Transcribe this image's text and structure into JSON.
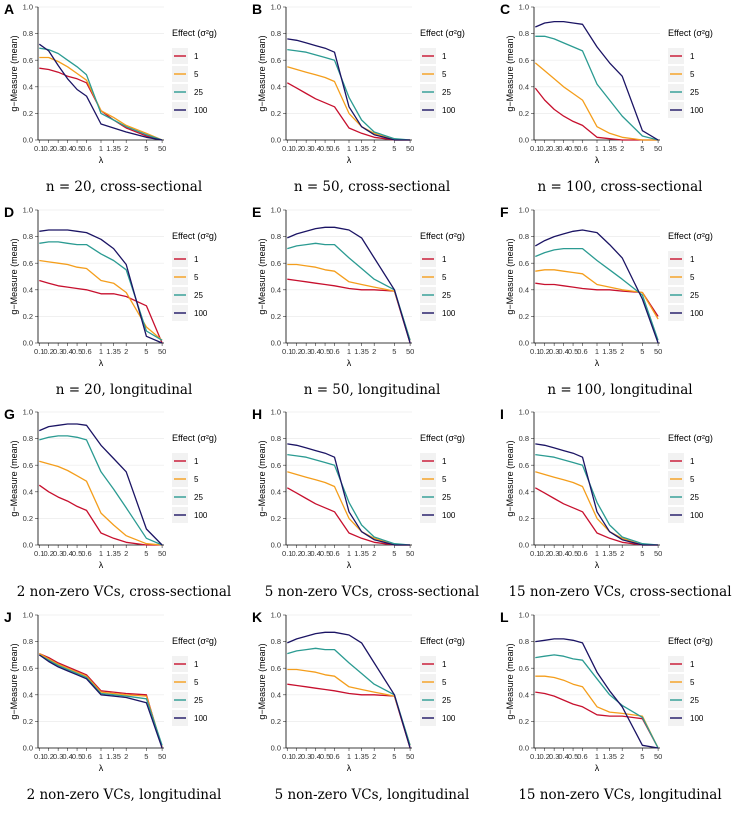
{
  "figure": {
    "legend_title": "Effect (σ²g)",
    "x_label": "λ",
    "y_label": "g−Measure (mean)",
    "x_ticks": [
      "0.1",
      "0.2",
      "0.3",
      "0.4",
      "0.5",
      "0.6",
      "1",
      "1.35",
      "2",
      "5",
      "50"
    ],
    "y_ticks": [
      "0.0",
      "0.2",
      "0.4",
      "0.6",
      "0.8",
      "1.0"
    ],
    "colors": {
      "1": "#c7102e",
      "5": "#f49e1c",
      "25": "#2b9b92",
      "100": "#1b1464"
    }
  },
  "chart_data": [
    {
      "type": "line",
      "panel": "A",
      "caption": "n = 20, cross-sectional",
      "ylim": [
        0,
        1
      ],
      "x": [
        "0.1",
        "0.2",
        "0.3",
        "0.4",
        "0.5",
        "0.6",
        "1",
        "1.35",
        "2",
        "5",
        "50"
      ],
      "series": [
        {
          "name": "1",
          "values": [
            0.54,
            0.53,
            0.51,
            0.48,
            0.46,
            0.43,
            0.22,
            0.15,
            0.09,
            0.03,
            0.0
          ]
        },
        {
          "name": "5",
          "values": [
            0.62,
            0.62,
            0.59,
            0.55,
            0.5,
            0.45,
            0.22,
            0.17,
            0.11,
            0.05,
            0.0
          ]
        },
        {
          "name": "25",
          "values": [
            0.69,
            0.68,
            0.65,
            0.6,
            0.55,
            0.49,
            0.2,
            0.15,
            0.1,
            0.04,
            0.0
          ]
        },
        {
          "name": "100",
          "values": [
            0.72,
            0.67,
            0.56,
            0.46,
            0.38,
            0.33,
            0.12,
            0.09,
            0.06,
            0.02,
            0.0
          ]
        }
      ]
    },
    {
      "type": "line",
      "panel": "B",
      "caption": "n = 50, cross-sectional",
      "ylim": [
        0,
        1
      ],
      "x": [
        "0.1",
        "0.2",
        "0.3",
        "0.4",
        "0.5",
        "0.6",
        "1",
        "1.35",
        "2",
        "5",
        "50"
      ],
      "series": [
        {
          "name": "1",
          "values": [
            0.43,
            0.39,
            0.35,
            0.31,
            0.28,
            0.25,
            0.09,
            0.05,
            0.02,
            0.0,
            0.0
          ]
        },
        {
          "name": "5",
          "values": [
            0.55,
            0.53,
            0.51,
            0.49,
            0.47,
            0.44,
            0.2,
            0.1,
            0.05,
            0.0,
            0.0
          ]
        },
        {
          "name": "25",
          "values": [
            0.68,
            0.67,
            0.66,
            0.64,
            0.62,
            0.6,
            0.32,
            0.15,
            0.06,
            0.01,
            0.0
          ]
        },
        {
          "name": "100",
          "values": [
            0.76,
            0.75,
            0.73,
            0.71,
            0.69,
            0.66,
            0.25,
            0.1,
            0.04,
            0.0,
            0.0
          ]
        }
      ]
    },
    {
      "type": "line",
      "panel": "C",
      "caption": "n = 100, cross-sectional",
      "ylim": [
        0,
        1
      ],
      "x": [
        "0.1",
        "0.2",
        "0.3",
        "0.4",
        "0.5",
        "0.6",
        "1",
        "1.35",
        "2",
        "5",
        "50"
      ],
      "series": [
        {
          "name": "1",
          "values": [
            0.39,
            0.3,
            0.23,
            0.18,
            0.14,
            0.11,
            0.02,
            0.01,
            0.0,
            0.0,
            0.0
          ]
        },
        {
          "name": "5",
          "values": [
            0.58,
            0.52,
            0.46,
            0.4,
            0.35,
            0.3,
            0.1,
            0.05,
            0.02,
            0.0,
            0.0
          ]
        },
        {
          "name": "25",
          "values": [
            0.78,
            0.78,
            0.76,
            0.73,
            0.7,
            0.67,
            0.42,
            0.3,
            0.18,
            0.03,
            0.0
          ]
        },
        {
          "name": "100",
          "values": [
            0.85,
            0.88,
            0.89,
            0.89,
            0.88,
            0.87,
            0.7,
            0.58,
            0.48,
            0.07,
            0.0
          ]
        }
      ]
    },
    {
      "type": "line",
      "panel": "D",
      "caption": "n = 20, longitudinal",
      "ylim": [
        0,
        1
      ],
      "x": [
        "0.1",
        "0.2",
        "0.3",
        "0.4",
        "0.5",
        "0.6",
        "1",
        "1.35",
        "2",
        "5",
        "50"
      ],
      "series": [
        {
          "name": "1",
          "values": [
            0.47,
            0.45,
            0.43,
            0.42,
            0.41,
            0.4,
            0.37,
            0.37,
            0.35,
            0.28,
            0.0
          ]
        },
        {
          "name": "5",
          "values": [
            0.62,
            0.61,
            0.6,
            0.59,
            0.57,
            0.56,
            0.47,
            0.45,
            0.38,
            0.12,
            0.02
          ]
        },
        {
          "name": "25",
          "values": [
            0.75,
            0.76,
            0.76,
            0.75,
            0.74,
            0.74,
            0.67,
            0.62,
            0.55,
            0.09,
            0.02
          ]
        },
        {
          "name": "100",
          "values": [
            0.84,
            0.85,
            0.85,
            0.85,
            0.84,
            0.83,
            0.78,
            0.71,
            0.59,
            0.05,
            0.0
          ]
        }
      ]
    },
    {
      "type": "line",
      "panel": "E",
      "caption": "n = 50, longitudinal",
      "ylim": [
        0,
        1
      ],
      "x": [
        "0.1",
        "0.2",
        "0.3",
        "0.4",
        "0.5",
        "0.6",
        "1",
        "1.35",
        "2",
        "5",
        "50"
      ],
      "series": [
        {
          "name": "1",
          "values": [
            0.48,
            0.47,
            0.46,
            0.45,
            0.44,
            0.43,
            0.41,
            0.4,
            0.4,
            0.39,
            0.0
          ]
        },
        {
          "name": "5",
          "values": [
            0.59,
            0.59,
            0.58,
            0.57,
            0.55,
            0.54,
            0.46,
            0.44,
            0.42,
            0.39,
            0.02
          ]
        },
        {
          "name": "25",
          "values": [
            0.71,
            0.73,
            0.74,
            0.75,
            0.74,
            0.74,
            0.64,
            0.56,
            0.48,
            0.4,
            0.02
          ]
        },
        {
          "name": "100",
          "values": [
            0.79,
            0.82,
            0.84,
            0.86,
            0.87,
            0.87,
            0.85,
            0.79,
            0.64,
            0.4,
            0.0
          ]
        }
      ]
    },
    {
      "type": "line",
      "panel": "F",
      "caption": "n = 100, longitudinal",
      "ylim": [
        0,
        1
      ],
      "x": [
        "0.1",
        "0.2",
        "0.3",
        "0.4",
        "0.5",
        "0.6",
        "1",
        "1.35",
        "2",
        "5",
        "50"
      ],
      "series": [
        {
          "name": "1",
          "values": [
            0.45,
            0.44,
            0.44,
            0.43,
            0.42,
            0.41,
            0.4,
            0.4,
            0.39,
            0.38,
            0.2
          ]
        },
        {
          "name": "5",
          "values": [
            0.54,
            0.55,
            0.55,
            0.54,
            0.53,
            0.52,
            0.44,
            0.42,
            0.4,
            0.38,
            0.18
          ]
        },
        {
          "name": "25",
          "values": [
            0.65,
            0.68,
            0.7,
            0.71,
            0.71,
            0.71,
            0.62,
            0.55,
            0.48,
            0.36,
            0.02
          ]
        },
        {
          "name": "100",
          "values": [
            0.73,
            0.77,
            0.8,
            0.82,
            0.84,
            0.85,
            0.83,
            0.74,
            0.64,
            0.33,
            0.0
          ]
        }
      ]
    },
    {
      "type": "line",
      "panel": "G",
      "caption": "2 non-zero VCs, cross-sectional",
      "ylim": [
        0,
        1
      ],
      "x": [
        "0.1",
        "0.2",
        "0.3",
        "0.4",
        "0.5",
        "0.6",
        "1",
        "1.35",
        "2",
        "5",
        "50"
      ],
      "series": [
        {
          "name": "1",
          "values": [
            0.45,
            0.4,
            0.36,
            0.33,
            0.29,
            0.26,
            0.09,
            0.05,
            0.02,
            0.0,
            0.0
          ]
        },
        {
          "name": "5",
          "values": [
            0.63,
            0.61,
            0.59,
            0.56,
            0.52,
            0.48,
            0.24,
            0.15,
            0.07,
            0.01,
            0.0
          ]
        },
        {
          "name": "25",
          "values": [
            0.79,
            0.81,
            0.82,
            0.82,
            0.81,
            0.79,
            0.55,
            0.42,
            0.28,
            0.05,
            0.0
          ]
        },
        {
          "name": "100",
          "values": [
            0.86,
            0.89,
            0.9,
            0.91,
            0.91,
            0.9,
            0.75,
            0.65,
            0.55,
            0.12,
            0.0
          ]
        }
      ]
    },
    {
      "type": "line",
      "panel": "H",
      "caption": "5 non-zero VCs, cross-sectional",
      "ylim": [
        0,
        1
      ],
      "x": [
        "0.1",
        "0.2",
        "0.3",
        "0.4",
        "0.5",
        "0.6",
        "1",
        "1.35",
        "2",
        "5",
        "50"
      ],
      "series": [
        {
          "name": "1",
          "values": [
            0.43,
            0.39,
            0.35,
            0.31,
            0.28,
            0.25,
            0.09,
            0.05,
            0.02,
            0.0,
            0.0
          ]
        },
        {
          "name": "5",
          "values": [
            0.55,
            0.53,
            0.51,
            0.49,
            0.47,
            0.44,
            0.2,
            0.1,
            0.05,
            0.0,
            0.0
          ]
        },
        {
          "name": "25",
          "values": [
            0.68,
            0.67,
            0.66,
            0.64,
            0.62,
            0.6,
            0.32,
            0.15,
            0.06,
            0.01,
            0.0
          ]
        },
        {
          "name": "100",
          "values": [
            0.76,
            0.75,
            0.73,
            0.71,
            0.69,
            0.66,
            0.25,
            0.1,
            0.04,
            0.0,
            0.0
          ]
        }
      ]
    },
    {
      "type": "line",
      "panel": "I",
      "caption": "15 non-zero VCs, cross-sectional",
      "ylim": [
        0,
        1
      ],
      "x": [
        "0.1",
        "0.2",
        "0.3",
        "0.4",
        "0.5",
        "0.6",
        "1",
        "1.35",
        "2",
        "5",
        "50"
      ],
      "series": [
        {
          "name": "1",
          "values": [
            0.43,
            0.39,
            0.35,
            0.31,
            0.28,
            0.25,
            0.09,
            0.05,
            0.02,
            0.0,
            0.0
          ]
        },
        {
          "name": "5",
          "values": [
            0.55,
            0.53,
            0.51,
            0.49,
            0.47,
            0.44,
            0.2,
            0.1,
            0.05,
            0.0,
            0.0
          ]
        },
        {
          "name": "25",
          "values": [
            0.68,
            0.67,
            0.66,
            0.64,
            0.62,
            0.6,
            0.32,
            0.15,
            0.06,
            0.01,
            0.0
          ]
        },
        {
          "name": "100",
          "values": [
            0.76,
            0.75,
            0.73,
            0.71,
            0.69,
            0.66,
            0.25,
            0.1,
            0.04,
            0.0,
            0.0
          ]
        }
      ]
    },
    {
      "type": "line",
      "panel": "J",
      "caption": "2 non-zero VCs, longitudinal",
      "ylim": [
        0,
        1
      ],
      "x": [
        "0.1",
        "0.2",
        "0.3",
        "0.4",
        "0.5",
        "0.6",
        "1",
        "1.35",
        "2",
        "5",
        "50"
      ],
      "series": [
        {
          "name": "1",
          "values": [
            0.71,
            0.68,
            0.64,
            0.61,
            0.58,
            0.55,
            0.43,
            0.42,
            0.41,
            0.4,
            0.0
          ]
        },
        {
          "name": "5",
          "values": [
            0.71,
            0.67,
            0.63,
            0.6,
            0.57,
            0.54,
            0.42,
            0.41,
            0.4,
            0.39,
            0.01
          ]
        },
        {
          "name": "25",
          "values": [
            0.7,
            0.66,
            0.62,
            0.59,
            0.56,
            0.53,
            0.41,
            0.4,
            0.39,
            0.37,
            0.02
          ]
        },
        {
          "name": "100",
          "values": [
            0.7,
            0.65,
            0.61,
            0.58,
            0.55,
            0.52,
            0.4,
            0.39,
            0.38,
            0.34,
            0.0
          ]
        }
      ]
    },
    {
      "type": "line",
      "panel": "K",
      "caption": "5 non-zero VCs, longitudinal",
      "ylim": [
        0,
        1
      ],
      "x": [
        "0.1",
        "0.2",
        "0.3",
        "0.4",
        "0.5",
        "0.6",
        "1",
        "1.35",
        "2",
        "5",
        "50"
      ],
      "series": [
        {
          "name": "1",
          "values": [
            0.48,
            0.47,
            0.46,
            0.45,
            0.44,
            0.43,
            0.41,
            0.4,
            0.4,
            0.39,
            0.0
          ]
        },
        {
          "name": "5",
          "values": [
            0.59,
            0.59,
            0.58,
            0.57,
            0.55,
            0.54,
            0.46,
            0.44,
            0.42,
            0.39,
            0.02
          ]
        },
        {
          "name": "25",
          "values": [
            0.71,
            0.73,
            0.74,
            0.75,
            0.74,
            0.74,
            0.64,
            0.56,
            0.48,
            0.4,
            0.02
          ]
        },
        {
          "name": "100",
          "values": [
            0.79,
            0.82,
            0.84,
            0.86,
            0.87,
            0.87,
            0.85,
            0.79,
            0.64,
            0.4,
            0.0
          ]
        }
      ]
    },
    {
      "type": "line",
      "panel": "L",
      "caption": "15 non-zero VCs, longitudinal",
      "ylim": [
        0,
        1
      ],
      "x": [
        "0.1",
        "0.2",
        "0.3",
        "0.4",
        "0.5",
        "0.6",
        "1",
        "1.35",
        "2",
        "5",
        "50"
      ],
      "series": [
        {
          "name": "1",
          "values": [
            0.42,
            0.41,
            0.39,
            0.36,
            0.33,
            0.31,
            0.25,
            0.24,
            0.24,
            0.22,
            0.0
          ]
        },
        {
          "name": "5",
          "values": [
            0.54,
            0.54,
            0.53,
            0.51,
            0.48,
            0.46,
            0.31,
            0.27,
            0.26,
            0.24,
            0.0
          ]
        },
        {
          "name": "25",
          "values": [
            0.68,
            0.69,
            0.7,
            0.69,
            0.67,
            0.66,
            0.52,
            0.4,
            0.32,
            0.23,
            0.0
          ]
        },
        {
          "name": "100",
          "values": [
            0.8,
            0.81,
            0.82,
            0.82,
            0.81,
            0.79,
            0.57,
            0.43,
            0.31,
            0.02,
            0.0
          ]
        }
      ]
    }
  ]
}
